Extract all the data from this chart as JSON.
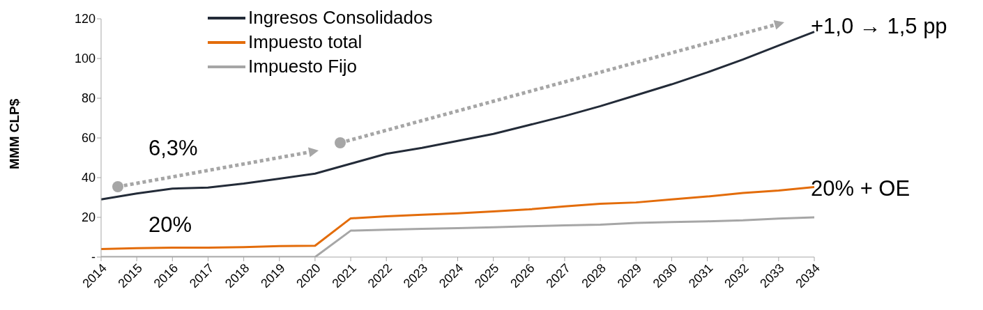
{
  "chart_data": {
    "type": "line",
    "ylabel": "MMM CLP$",
    "categories": [
      "2014",
      "2015",
      "2016",
      "2017",
      "2018",
      "2019",
      "2020",
      "2021",
      "2022",
      "2023",
      "2024",
      "2025",
      "2026",
      "2027",
      "2028",
      "2029",
      "2030",
      "2031",
      "2032",
      "2033",
      "2034"
    ],
    "series": [
      {
        "name": "Ingresos Consolidados",
        "color": "#232b38",
        "values": [
          29,
          32,
          34.5,
          35,
          37,
          39.5,
          42,
          47,
          52,
          55,
          58.5,
          62,
          66.5,
          71,
          76,
          81.5,
          87,
          93,
          99.5,
          106.5,
          113.5
        ]
      },
      {
        "name": "Impuesto total",
        "color": "#e36c0a",
        "values": [
          4,
          4.5,
          4.7,
          4.7,
          5,
          5.5,
          5.7,
          19.5,
          20.5,
          21.3,
          22,
          23,
          24,
          25.5,
          26.8,
          27.5,
          29,
          30.5,
          32.3,
          33.5,
          35.3
        ]
      },
      {
        "name": "Impuesto Fijo",
        "color": "#a6a6a6",
        "values": [
          0,
          0,
          0,
          0,
          0,
          0,
          0,
          13.3,
          13.8,
          14.2,
          14.6,
          15,
          15.5,
          16,
          16.3,
          17.2,
          17.6,
          18,
          18.5,
          19.4,
          20
        ]
      }
    ],
    "ylim": [
      0,
      120
    ],
    "yticks": [
      {
        "value": 0,
        "label": "-"
      },
      20,
      40,
      60,
      80,
      100,
      120
    ],
    "grid": false,
    "legend": "top",
    "marker": "none",
    "line_style": "solid",
    "annotations": [
      "6,3%",
      "20%",
      "+1,0 → 1,5 pp",
      "20% + OE"
    ]
  }
}
